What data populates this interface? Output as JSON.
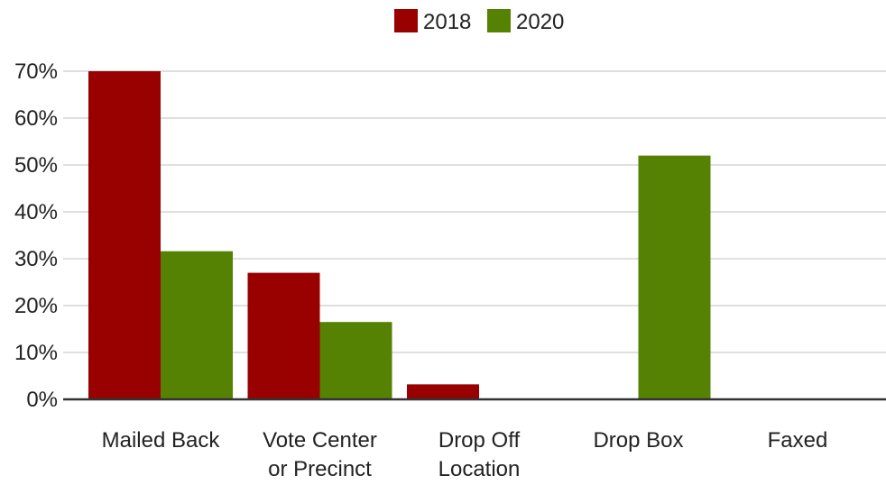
{
  "chart_data": {
    "type": "bar",
    "categories": [
      [
        "Mailed Back"
      ],
      [
        "Vote Center",
        "or Precinct"
      ],
      [
        "Drop Off",
        "Location"
      ],
      [
        "Drop Box"
      ],
      [
        "Faxed"
      ]
    ],
    "series": [
      {
        "name": "2018",
        "color": "#990000",
        "values": [
          70,
          27,
          3.2,
          0,
          0
        ]
      },
      {
        "name": "2020",
        "color": "#568203",
        "values": [
          31.6,
          16.5,
          0,
          52,
          0
        ]
      }
    ],
    "yticks": [
      "0%",
      "10%",
      "20%",
      "30%",
      "40%",
      "50%",
      "60%",
      "70%"
    ],
    "ylim": [
      0,
      70
    ],
    "grid": true,
    "legend_position": "top-center"
  }
}
